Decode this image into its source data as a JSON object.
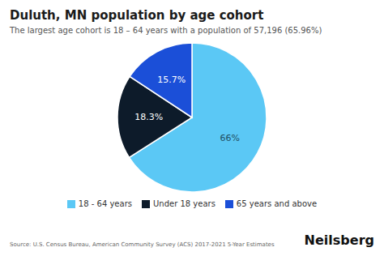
{
  "chart_data": {
    "type": "pie",
    "title": "Duluth, MN population by age cohort",
    "subtitle": "The largest age cohort is 18 – 64 years with a population of 57,196 (65.96%)",
    "categories": [
      "18 - 64 years",
      "Under 18 years",
      "65 years and above"
    ],
    "values": [
      65.96,
      18.3,
      15.74
    ],
    "value_labels": [
      "66%",
      "18.3%",
      "15.7%"
    ],
    "colors": [
      "#5BC8F5",
      "#0D1B2A",
      "#1B4FD8"
    ],
    "data_labels": true,
    "legend": "bottom",
    "annotations": [
      "Source: U.S. Census Bureau, American Community Survey (ACS) 2017-2021 5-Year Estimates",
      "Neilsberg"
    ]
  }
}
